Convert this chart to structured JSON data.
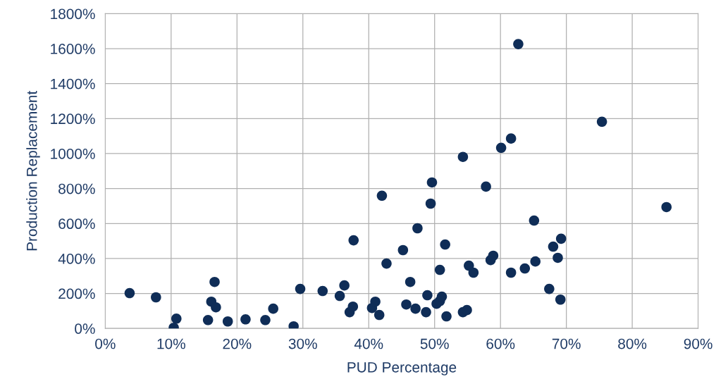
{
  "chart_data": {
    "type": "scatter",
    "xlabel": "PUD Percentage",
    "ylabel": "Production Replacement",
    "series": [
      {
        "color": "#0f2d57",
        "x": [
          3.7,
          7.7,
          10.4,
          10.8,
          15.6,
          16.1,
          16.6,
          16.8,
          18.6,
          21.3,
          24.3,
          25.5,
          28.6,
          29.6,
          33.0,
          35.6,
          36.3,
          37.1,
          37.6,
          37.7,
          40.5,
          41.0,
          41.6,
          42.0,
          42.7,
          45.2,
          45.7,
          46.3,
          47.1,
          47.4,
          48.7,
          48.9,
          49.4,
          49.6,
          50.3,
          50.8,
          51.1,
          50.8,
          51.6,
          51.8,
          54.3,
          54.3,
          54.9,
          55.2,
          55.9,
          57.8,
          58.5,
          58.9,
          60.1,
          61.6,
          61.6,
          62.7,
          63.7,
          65.1,
          65.3,
          67.4,
          68.0,
          68.7,
          69.1,
          69.2,
          75.4,
          85.2
        ],
        "values": [
          202,
          178,
          4,
          56,
          48,
          153,
          266,
          121,
          40,
          52,
          48,
          113,
          12,
          226,
          214,
          186,
          246,
          93,
          125,
          504,
          117,
          153,
          77,
          759,
          371,
          448,
          137,
          266,
          113,
          573,
          93,
          190,
          714,
          835,
          141,
          157,
          182,
          335,
          480,
          69,
          93,
          981,
          105,
          359,
          319,
          811,
          391,
          416,
          1033,
          1086,
          319,
          1626,
          343,
          617,
          383,
          226,
          468,
          404,
          165,
          513,
          1182,
          694
        ]
      }
    ],
    "xlim": [
      0,
      90
    ],
    "xticks": [
      {
        "value": 0,
        "label": "0%"
      },
      {
        "value": 10,
        "label": "10%"
      },
      {
        "value": 20,
        "label": "20%"
      },
      {
        "value": 30,
        "label": "30%"
      },
      {
        "value": 40,
        "label": "40%"
      },
      {
        "value": 50,
        "label": "50%"
      },
      {
        "value": 60,
        "label": "60%"
      },
      {
        "value": 70,
        "label": "70%"
      },
      {
        "value": 80,
        "label": "80%"
      },
      {
        "value": 90,
        "label": "90%"
      }
    ],
    "ylim": [
      0,
      1800
    ],
    "yticks": [
      {
        "value": 0,
        "label": "0%"
      },
      {
        "value": 200,
        "label": "200%"
      },
      {
        "value": 400,
        "label": "400%"
      },
      {
        "value": 600,
        "label": "600%"
      },
      {
        "value": 800,
        "label": "800%"
      },
      {
        "value": 1000,
        "label": "1000%"
      },
      {
        "value": 1200,
        "label": "1200%"
      },
      {
        "value": 1400,
        "label": "1400%"
      },
      {
        "value": 1600,
        "label": "1600%"
      },
      {
        "value": 1800,
        "label": "1800%"
      }
    ],
    "grid": true,
    "marker": "circle"
  }
}
